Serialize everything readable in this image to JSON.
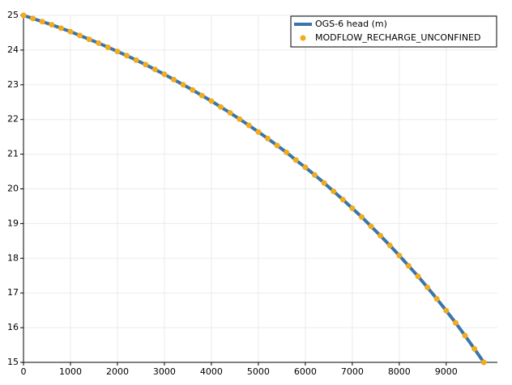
{
  "chart_data": {
    "type": "line",
    "x": [
      0,
      200,
      400,
      600,
      800,
      1000,
      1200,
      1400,
      1600,
      1800,
      2000,
      2200,
      2400,
      2600,
      2800,
      3000,
      3200,
      3400,
      3600,
      3800,
      4000,
      4200,
      4400,
      4600,
      4800,
      5000,
      5200,
      5400,
      5600,
      5800,
      6000,
      6200,
      6400,
      6600,
      6800,
      7000,
      7200,
      7400,
      7600,
      7800,
      8000,
      8200,
      8400,
      8600,
      8800,
      9000,
      9200,
      9400,
      9600,
      9800
    ],
    "series": [
      {
        "name": "OGS-6 head (m)",
        "color": "#3b75a8",
        "mode": "line",
        "values": [
          25.0,
          24.91,
          24.82,
          24.73,
          24.63,
          24.53,
          24.42,
          24.31,
          24.2,
          24.08,
          23.96,
          23.84,
          23.71,
          23.58,
          23.44,
          23.3,
          23.15,
          23.0,
          22.85,
          22.69,
          22.53,
          22.36,
          22.19,
          22.01,
          21.83,
          21.64,
          21.45,
          21.25,
          21.05,
          20.83,
          20.62,
          20.4,
          20.17,
          19.93,
          19.69,
          19.44,
          19.19,
          18.92,
          18.65,
          18.37,
          18.08,
          17.78,
          17.48,
          17.16,
          16.83,
          16.49,
          16.14,
          15.77,
          15.39,
          15.0
        ]
      },
      {
        "name": "MODFLOW_RECHARGE_UNCONFINED",
        "color": "#f1ab1c",
        "mode": "markers",
        "values": [
          25.0,
          24.91,
          24.82,
          24.73,
          24.63,
          24.53,
          24.42,
          24.31,
          24.2,
          24.08,
          23.96,
          23.84,
          23.71,
          23.58,
          23.44,
          23.3,
          23.15,
          23.0,
          22.85,
          22.69,
          22.53,
          22.36,
          22.19,
          22.01,
          21.83,
          21.64,
          21.45,
          21.25,
          21.05,
          20.83,
          20.62,
          20.4,
          20.17,
          19.93,
          19.69,
          19.44,
          19.19,
          18.92,
          18.65,
          18.37,
          18.08,
          17.78,
          17.48,
          17.16,
          16.83,
          16.49,
          16.14,
          15.77,
          15.39,
          15.0
        ]
      }
    ],
    "xlim": [
      0,
      10090
    ],
    "ylim": [
      15,
      25
    ],
    "xticks": [
      0,
      1000,
      2000,
      3000,
      4000,
      5000,
      6000,
      7000,
      8000,
      9000
    ],
    "yticks": [
      15,
      16,
      17,
      18,
      19,
      20,
      21,
      22,
      23,
      24,
      25
    ],
    "grid": true,
    "legend": "top-right"
  }
}
